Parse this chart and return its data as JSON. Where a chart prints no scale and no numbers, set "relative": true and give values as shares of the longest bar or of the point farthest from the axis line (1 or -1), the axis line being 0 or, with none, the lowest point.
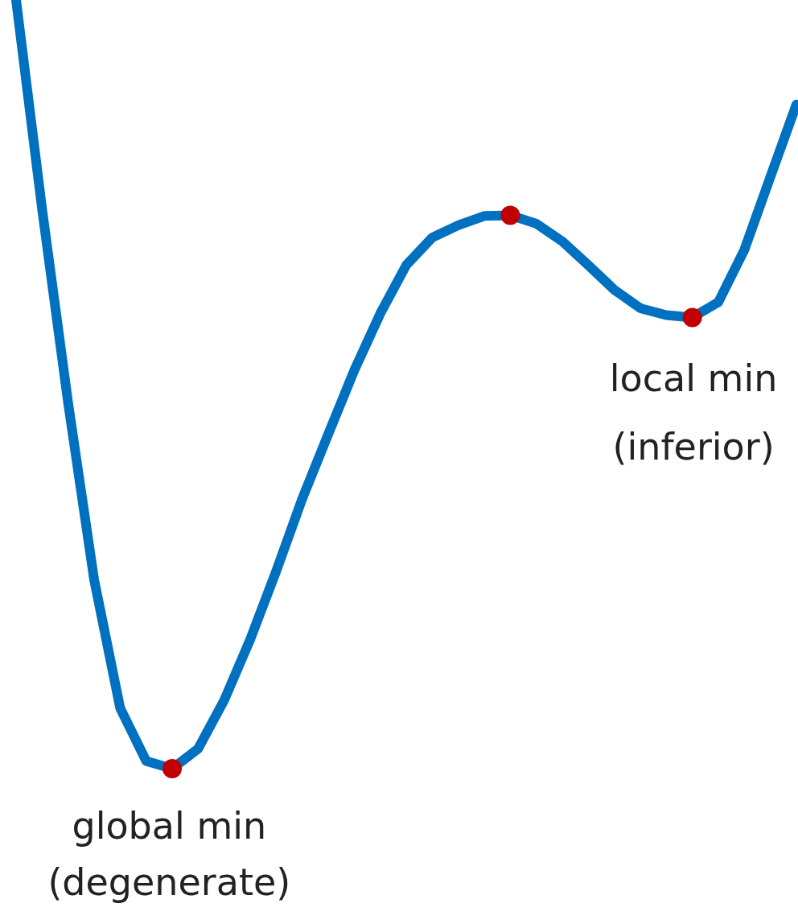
{
  "chart_data": {
    "type": "line",
    "relative": true,
    "legend": false,
    "tick_labels": false,
    "categories": [
      null,
      null,
      null,
      null,
      null,
      null,
      null,
      null,
      null,
      null,
      null,
      null,
      null,
      null,
      null,
      null,
      null,
      null,
      null,
      null,
      null,
      null,
      null,
      null,
      null,
      null,
      null,
      null,
      null,
      null,
      null
    ],
    "series": [
      {
        "color": "#0070c0",
        "values": [
          1,
          0.728,
          0.476,
          0.246,
          0.079,
          0.01,
          0,
          0.026,
          0.089,
          0.168,
          0.257,
          0.351,
          0.435,
          0.518,
          0.592,
          0.655,
          0.691,
          0.707,
          0.719,
          0.72,
          0.709,
          0.686,
          0.655,
          0.623,
          0.599,
          0.59,
          0.587,
          0.607,
          0.675,
          0.77,
          0.864
        ],
        "colors": [
          null,
          null,
          null,
          null,
          null,
          null,
          "#c00000",
          null,
          null,
          null,
          null,
          null,
          null,
          null,
          null,
          null,
          null,
          null,
          null,
          "#c00000",
          null,
          null,
          null,
          null,
          null,
          null,
          "#c00000",
          null,
          null,
          null,
          null
        ]
      }
    ],
    "annotations": [
      "global min\n(degenerate)",
      "local min\n(inferior)"
    ]
  }
}
